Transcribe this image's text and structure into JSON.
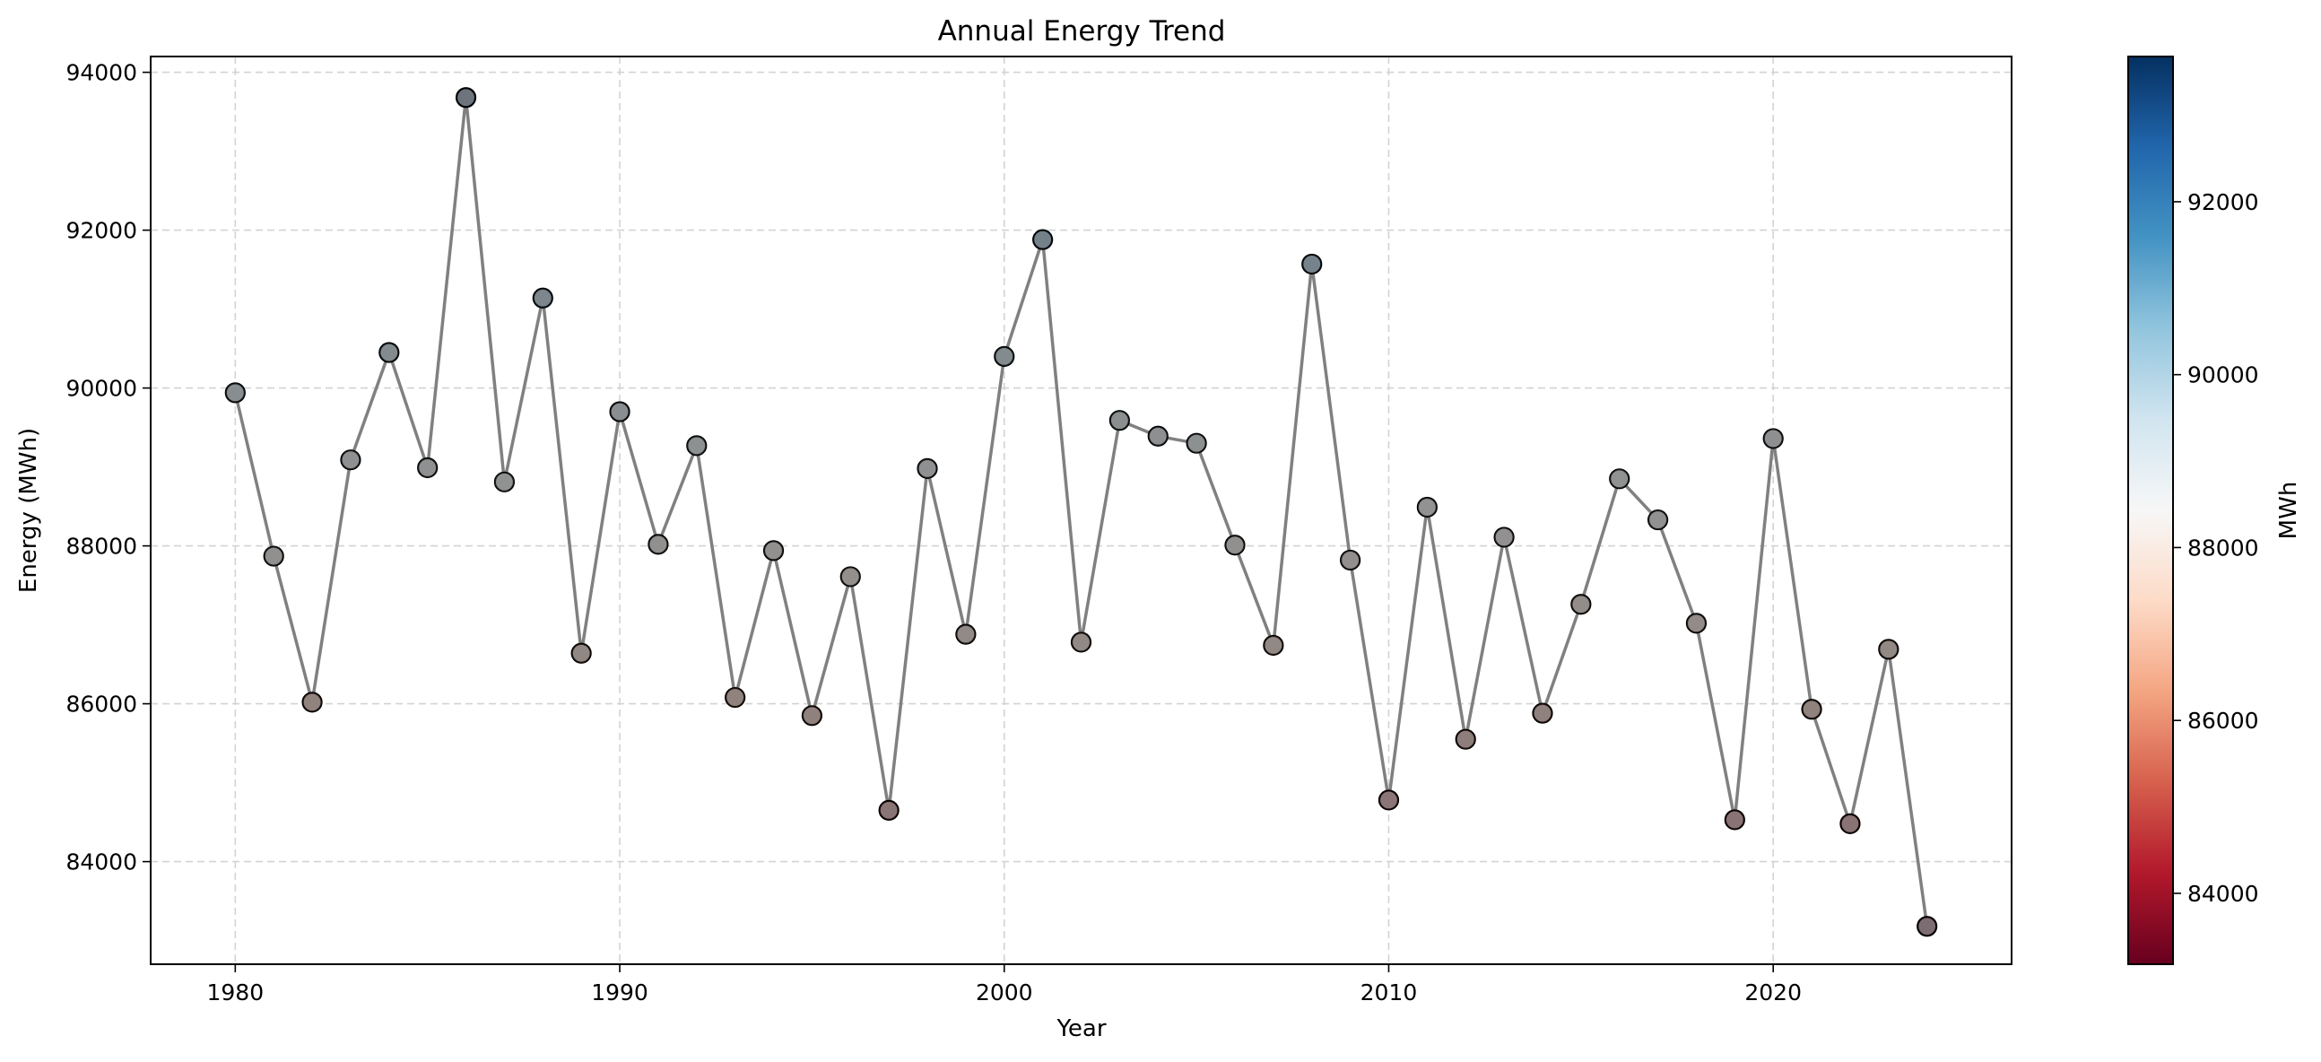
{
  "chart_data": {
    "type": "line",
    "title": "Annual Energy Trend",
    "xlabel": "Year",
    "ylabel": "Energy (MWh)",
    "xlim": [
      1977.8,
      2026.2
    ],
    "ylim": [
      82700,
      94200
    ],
    "xticks": [
      1980,
      1990,
      2000,
      2010,
      2020
    ],
    "yticks": [
      84000,
      86000,
      88000,
      90000,
      92000,
      94000
    ],
    "grid": true,
    "line_color": "#808080",
    "marker_edge_color": "#000000",
    "x": [
      1980,
      1981,
      1982,
      1983,
      1984,
      1985,
      1986,
      1987,
      1988,
      1989,
      1990,
      1991,
      1992,
      1993,
      1994,
      1995,
      1996,
      1997,
      1998,
      1999,
      2000,
      2001,
      2002,
      2003,
      2004,
      2005,
      2006,
      2007,
      2008,
      2009,
      2010,
      2011,
      2012,
      2013,
      2014,
      2015,
      2016,
      2017,
      2018,
      2019,
      2020,
      2021,
      2022,
      2023,
      2024
    ],
    "series": [
      {
        "values": [
          89940,
          87870,
          86020,
          89090,
          90450,
          88990,
          93680,
          88810,
          91140,
          86640,
          89700,
          88020,
          89270,
          86080,
          87940,
          85850,
          87610,
          84650,
          88980,
          86880,
          90400,
          91880,
          86780,
          89590,
          89390,
          89300,
          88010,
          86740,
          91570,
          87820,
          84780,
          88490,
          85550,
          88110,
          85880,
          87260,
          88850,
          88330,
          87020,
          84530,
          89360,
          85930,
          84480,
          86690,
          83180
        ]
      }
    ],
    "colorbar": {
      "label": "MWh",
      "colormap": "RdBu",
      "range": [
        83180,
        93680
      ],
      "ticks": [
        84000,
        86000,
        88000,
        90000,
        92000
      ],
      "stops": [
        "#67001f",
        "#b2182b",
        "#d6604d",
        "#f4a582",
        "#fddbc7",
        "#f7f7f7",
        "#d1e5f0",
        "#92c5de",
        "#4393c3",
        "#2166ac",
        "#053061"
      ]
    }
  }
}
